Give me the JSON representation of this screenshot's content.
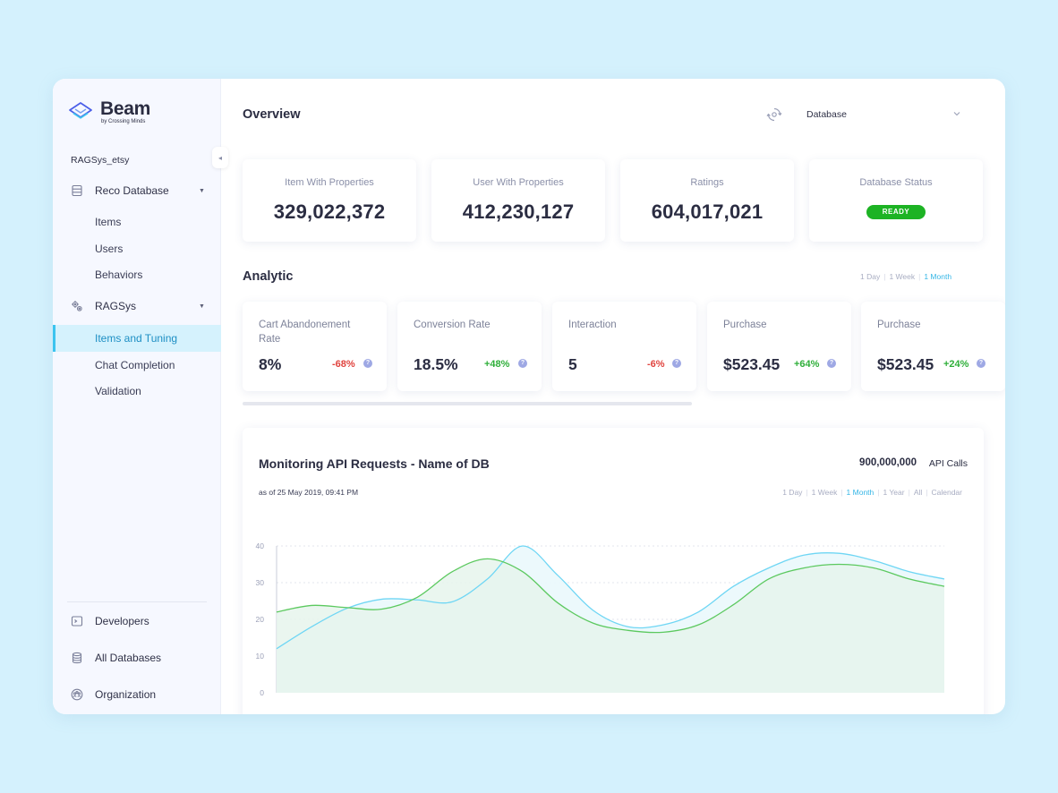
{
  "brand": {
    "name": "Beam",
    "subtitle": "by Crossing Minds"
  },
  "sidebar": {
    "project": "RAGSys_etsy",
    "groups": [
      {
        "label": "Reco Database",
        "icon": "database-icon",
        "items": [
          "Items",
          "Users",
          "Behaviors"
        ]
      },
      {
        "label": "RAGSys",
        "icon": "gears-icon",
        "items": [
          "Items and Tuning",
          "Chat Completion",
          "Validation"
        ],
        "active": "Items and Tuning"
      }
    ],
    "bottom": [
      {
        "label": "Developers",
        "icon": "terminal-icon"
      },
      {
        "label": "All Databases",
        "icon": "databases-icon"
      },
      {
        "label": "Organization",
        "icon": "organization-icon"
      }
    ]
  },
  "header": {
    "title": "Overview",
    "db_select": "Database"
  },
  "stats": [
    {
      "label": "Item With Properties",
      "value": "329,022,372"
    },
    {
      "label": "User With Properties",
      "value": "412,230,127"
    },
    {
      "label": "Ratings",
      "value": "604,017,021"
    },
    {
      "label": "Database Status",
      "badge": "READY"
    }
  ],
  "analytic": {
    "title": "Analytic",
    "ranges": [
      "1 Day",
      "1 Week",
      "1 Month"
    ],
    "active_range": "1 Month",
    "metrics": [
      {
        "label": "Cart Abandonement Rate",
        "value": "8%",
        "delta": "-68%",
        "trend": "down"
      },
      {
        "label": "Conversion Rate",
        "value": "18.5%",
        "delta": "+48%",
        "trend": "up"
      },
      {
        "label": "Interaction",
        "value": "5",
        "delta": "-6%",
        "trend": "down"
      },
      {
        "label": "Purchase",
        "value": "$523.45",
        "delta": "+64%",
        "trend": "up"
      },
      {
        "label": "Purchase",
        "value": "$523.45",
        "delta": "+24%",
        "trend": "up"
      }
    ]
  },
  "monitor": {
    "title": "Monitoring API Requests - Name of DB",
    "api_value": "900,000,000",
    "api_label": "API Calls",
    "as_of": "as of 25 May 2019, 09:41 PM",
    "ranges": [
      "1 Day",
      "1 Week",
      "1 Month",
      "1 Year",
      "All",
      "Calendar"
    ],
    "active_range": "1 Month"
  },
  "chart_data": {
    "type": "area",
    "ylim": [
      0,
      40
    ],
    "yticks": [
      "0",
      "10",
      "20",
      "30",
      "40"
    ],
    "grid": true,
    "x": [
      0,
      1,
      2,
      3,
      4,
      5,
      6,
      7,
      8,
      9,
      10,
      11,
      12,
      13,
      14,
      15,
      16,
      17,
      18,
      19
    ],
    "series": [
      {
        "color": "#6fd6f4",
        "values": [
          12,
          18,
          23,
          25.5,
          25.3,
          24.8,
          31,
          40,
          32,
          22.5,
          18,
          18.5,
          22,
          29,
          34,
          37.5,
          38,
          36,
          33,
          31
        ]
      },
      {
        "color": "#5cc95f",
        "values": [
          22,
          23.8,
          23.2,
          22.8,
          26,
          33,
          36.5,
          33,
          24.5,
          19,
          17,
          16.5,
          18.5,
          24,
          31,
          34,
          35,
          34,
          31,
          29
        ]
      }
    ],
    "colors": {
      "fill": "#e6f5ec"
    }
  }
}
